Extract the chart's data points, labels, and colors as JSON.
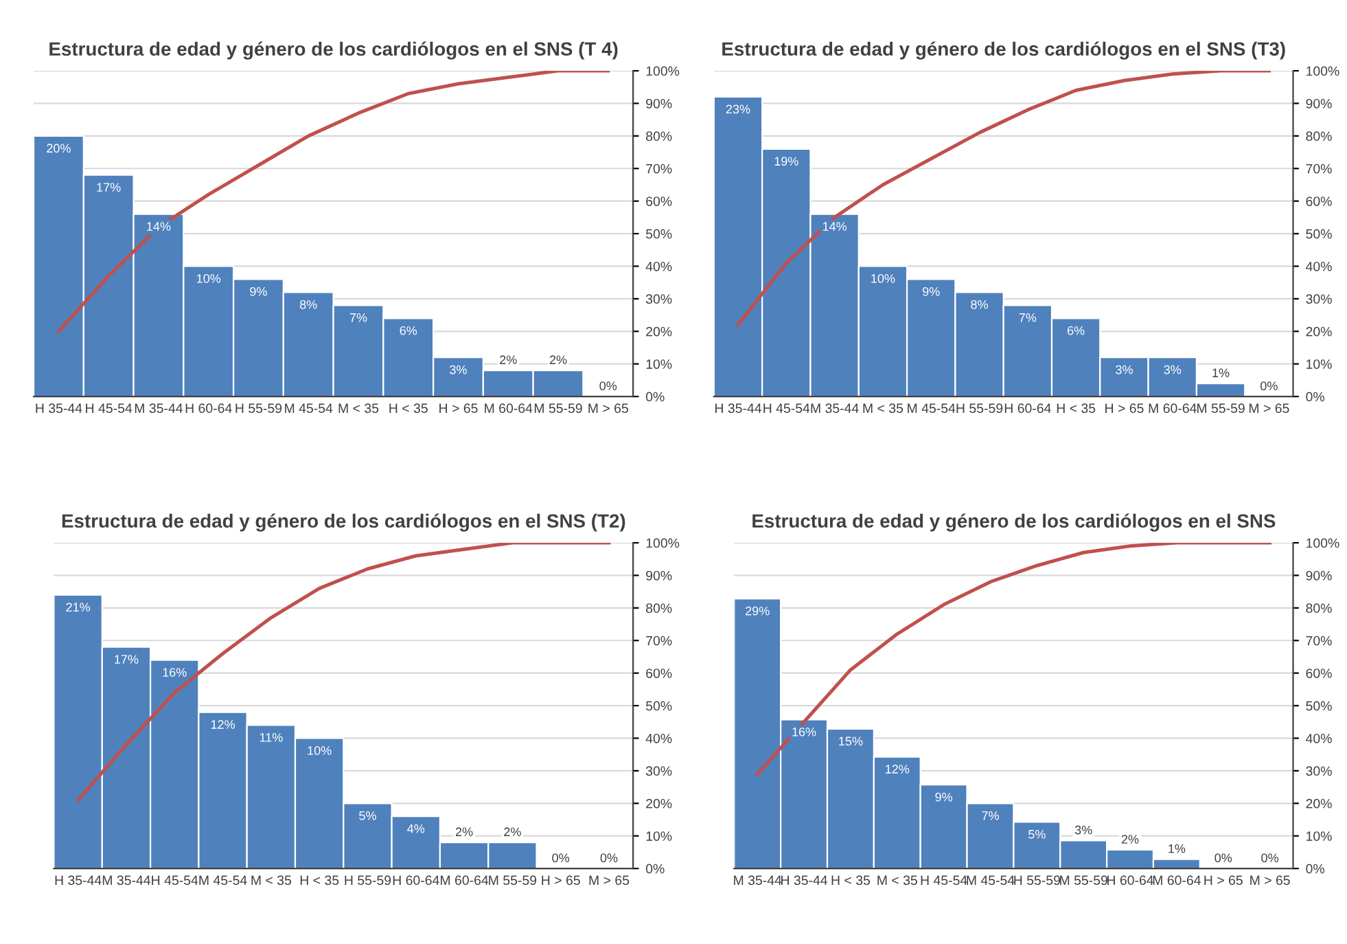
{
  "chart_data": [
    {
      "type": "bar",
      "title": "Estructura de edad y género de los cardiólogos en el SNS (T 4)",
      "categories": [
        "H 35-44",
        "H 45-54",
        "M 35-44",
        "H 60-64",
        "H 55-59",
        "M 45-54",
        "M < 35",
        "H < 35",
        "H > 65",
        "M 60-64",
        "M 55-59",
        "M > 65"
      ],
      "ylim": [
        0,
        25
      ],
      "y2lim": [
        0,
        100
      ],
      "y2ticks": [
        {
          "value": 0,
          "label": "0%"
        },
        {
          "value": 10,
          "label": "10%"
        },
        {
          "value": 20,
          "label": "20%"
        },
        {
          "value": 30,
          "label": "30%"
        },
        {
          "value": 40,
          "label": "40%"
        },
        {
          "value": 50,
          "label": "50%"
        },
        {
          "value": 60,
          "label": "60%"
        },
        {
          "value": 70,
          "label": "70%"
        },
        {
          "value": 80,
          "label": "80%"
        },
        {
          "value": 90,
          "label": "90%"
        },
        {
          "value": 100,
          "label": "100%"
        }
      ],
      "grid": "y",
      "series": [
        {
          "type": "bar",
          "color": "#4f81bd",
          "values": [
            20,
            17,
            14,
            10,
            9,
            8,
            7,
            6,
            3,
            2,
            2,
            0
          ],
          "value_labels": [
            "20%",
            "17%",
            "14%",
            "10%",
            "9%",
            "8%",
            "7%",
            "6%",
            "3%",
            "2%",
            "2%",
            "0%"
          ]
        },
        {
          "type": "line",
          "axis": "y2",
          "color": "#c0504d",
          "values": [
            20,
            37,
            52,
            62,
            71,
            80,
            87,
            93,
            96,
            98,
            100,
            100
          ]
        }
      ]
    },
    {
      "type": "bar",
      "title": "Estructura de edad y género de los cardiólogos en el SNS (T3)",
      "categories": [
        "H 35-44",
        "H 45-54",
        "M 35-44",
        "M < 35",
        "M 45-54",
        "H 55-59",
        "H 60-64",
        "H < 35",
        "H > 65",
        "M 60-64",
        "M 55-59",
        "M > 65"
      ],
      "ylim": [
        0,
        25
      ],
      "y2lim": [
        0,
        100
      ],
      "y2ticks": [
        {
          "value": 0,
          "label": "0%"
        },
        {
          "value": 10,
          "label": "10%"
        },
        {
          "value": 20,
          "label": "20%"
        },
        {
          "value": 30,
          "label": "30%"
        },
        {
          "value": 40,
          "label": "40%"
        },
        {
          "value": 50,
          "label": "50%"
        },
        {
          "value": 60,
          "label": "60%"
        },
        {
          "value": 70,
          "label": "70%"
        },
        {
          "value": 80,
          "label": "80%"
        },
        {
          "value": 90,
          "label": "90%"
        },
        {
          "value": 100,
          "label": "100%"
        }
      ],
      "grid": "y",
      "series": [
        {
          "type": "bar",
          "color": "#4f81bd",
          "values": [
            23,
            19,
            14,
            10,
            9,
            8,
            7,
            6,
            3,
            3,
            1,
            0
          ],
          "value_labels": [
            "23%",
            "19%",
            "14%",
            "10%",
            "9%",
            "8%",
            "7%",
            "6%",
            "3%",
            "3%",
            "1%",
            "0%"
          ]
        },
        {
          "type": "line",
          "axis": "y2",
          "color": "#c0504d",
          "values": [
            22,
            41,
            55,
            65,
            73,
            81,
            88,
            94,
            97,
            99,
            100,
            100
          ]
        }
      ]
    },
    {
      "type": "bar",
      "title": "Estructura de edad y género de los cardiólogos en el SNS (T2)",
      "categories": [
        "H 35-44",
        "M 35-44",
        "H 45-54",
        "M 45-54",
        "M < 35",
        "H < 35",
        "H 55-59",
        "H 60-64",
        "M 60-64",
        "M 55-59",
        "H > 65",
        "M > 65"
      ],
      "ylim": [
        0,
        25
      ],
      "y2lim": [
        0,
        100
      ],
      "y2ticks": [
        {
          "value": 0,
          "label": "0%"
        },
        {
          "value": 10,
          "label": "10%"
        },
        {
          "value": 20,
          "label": "20%"
        },
        {
          "value": 30,
          "label": "30%"
        },
        {
          "value": 40,
          "label": "40%"
        },
        {
          "value": 50,
          "label": "50%"
        },
        {
          "value": 60,
          "label": "60%"
        },
        {
          "value": 70,
          "label": "70%"
        },
        {
          "value": 80,
          "label": "80%"
        },
        {
          "value": 90,
          "label": "90%"
        },
        {
          "value": 100,
          "label": "100%"
        }
      ],
      "grid": "y",
      "series": [
        {
          "type": "bar",
          "color": "#4f81bd",
          "values": [
            21,
            17,
            16,
            12,
            11,
            10,
            5,
            4,
            2,
            2,
            0,
            0
          ],
          "value_labels": [
            "21%",
            "17%",
            "16%",
            "12%",
            "11%",
            "10%",
            "5%",
            "4%",
            "2%",
            "2%",
            "0%",
            "0%"
          ]
        },
        {
          "type": "line",
          "axis": "y2",
          "color": "#c0504d",
          "values": [
            21,
            38,
            54,
            66,
            77,
            86,
            92,
            96,
            98,
            100,
            100,
            100
          ]
        }
      ]
    },
    {
      "type": "bar",
      "title": "Estructura de edad y género de los cardiólogos en el SNS",
      "categories": [
        "M 35-44",
        "H 35-44",
        "H < 35",
        "M < 35",
        "H 45-54",
        "M 45-54",
        "H 55-59",
        "M 55-59",
        "H 60-64",
        "M 60-64",
        "H > 65",
        "M > 65"
      ],
      "ylim": [
        0,
        35
      ],
      "y2lim": [
        0,
        100
      ],
      "y2ticks": [
        {
          "value": 0,
          "label": "0%"
        },
        {
          "value": 10,
          "label": "10%"
        },
        {
          "value": 20,
          "label": "20%"
        },
        {
          "value": 30,
          "label": "30%"
        },
        {
          "value": 40,
          "label": "40%"
        },
        {
          "value": 50,
          "label": "50%"
        },
        {
          "value": 60,
          "label": "60%"
        },
        {
          "value": 70,
          "label": "70%"
        },
        {
          "value": 80,
          "label": "80%"
        },
        {
          "value": 90,
          "label": "90%"
        },
        {
          "value": 100,
          "label": "100%"
        }
      ],
      "grid": "y",
      "series": [
        {
          "type": "bar",
          "color": "#4f81bd",
          "values": [
            29,
            16,
            15,
            12,
            9,
            7,
            5,
            3,
            2,
            1,
            0,
            0
          ],
          "value_labels": [
            "29%",
            "16%",
            "15%",
            "12%",
            "9%",
            "7%",
            "5%",
            "3%",
            "2%",
            "1%",
            "0%",
            "0%"
          ]
        },
        {
          "type": "line",
          "axis": "y2",
          "color": "#c0504d",
          "values": [
            29,
            45,
            61,
            72,
            81,
            88,
            93,
            97,
            99,
            100,
            100,
            100
          ]
        }
      ]
    }
  ]
}
